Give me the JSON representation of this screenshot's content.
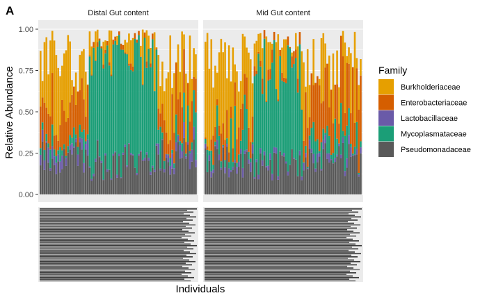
{
  "panel_tag": "A",
  "chart_data": {
    "type": "bar",
    "stacked": true,
    "panels": [
      "Distal Gut content",
      "Mid Gut content"
    ],
    "xlabel": "Individuals",
    "ylabel": "Relative Abundance",
    "ylim": [
      0,
      1
    ],
    "yticks": [
      "0.00",
      "0.25",
      "0.50",
      "0.75",
      "1.00"
    ],
    "ytick_values": [
      0,
      0.25,
      0.5,
      0.75,
      1.0
    ],
    "grid": true,
    "legend": {
      "title": "Family",
      "position": "right"
    },
    "x_tick_labels_legible": false,
    "bars_per_panel": 80,
    "series": [
      {
        "name": "Burkholderiaceae",
        "color": "#E69F00"
      },
      {
        "name": "Enterobacteriaceae",
        "color": "#D55E00"
      },
      {
        "name": "Lactobacillaceae",
        "color": "#6A5AA8"
      },
      {
        "name": "Mycoplasmataceae",
        "color": "#1B9E77"
      },
      {
        "name": "Pseudomonadaceae",
        "color": "#595959"
      }
    ]
  }
}
